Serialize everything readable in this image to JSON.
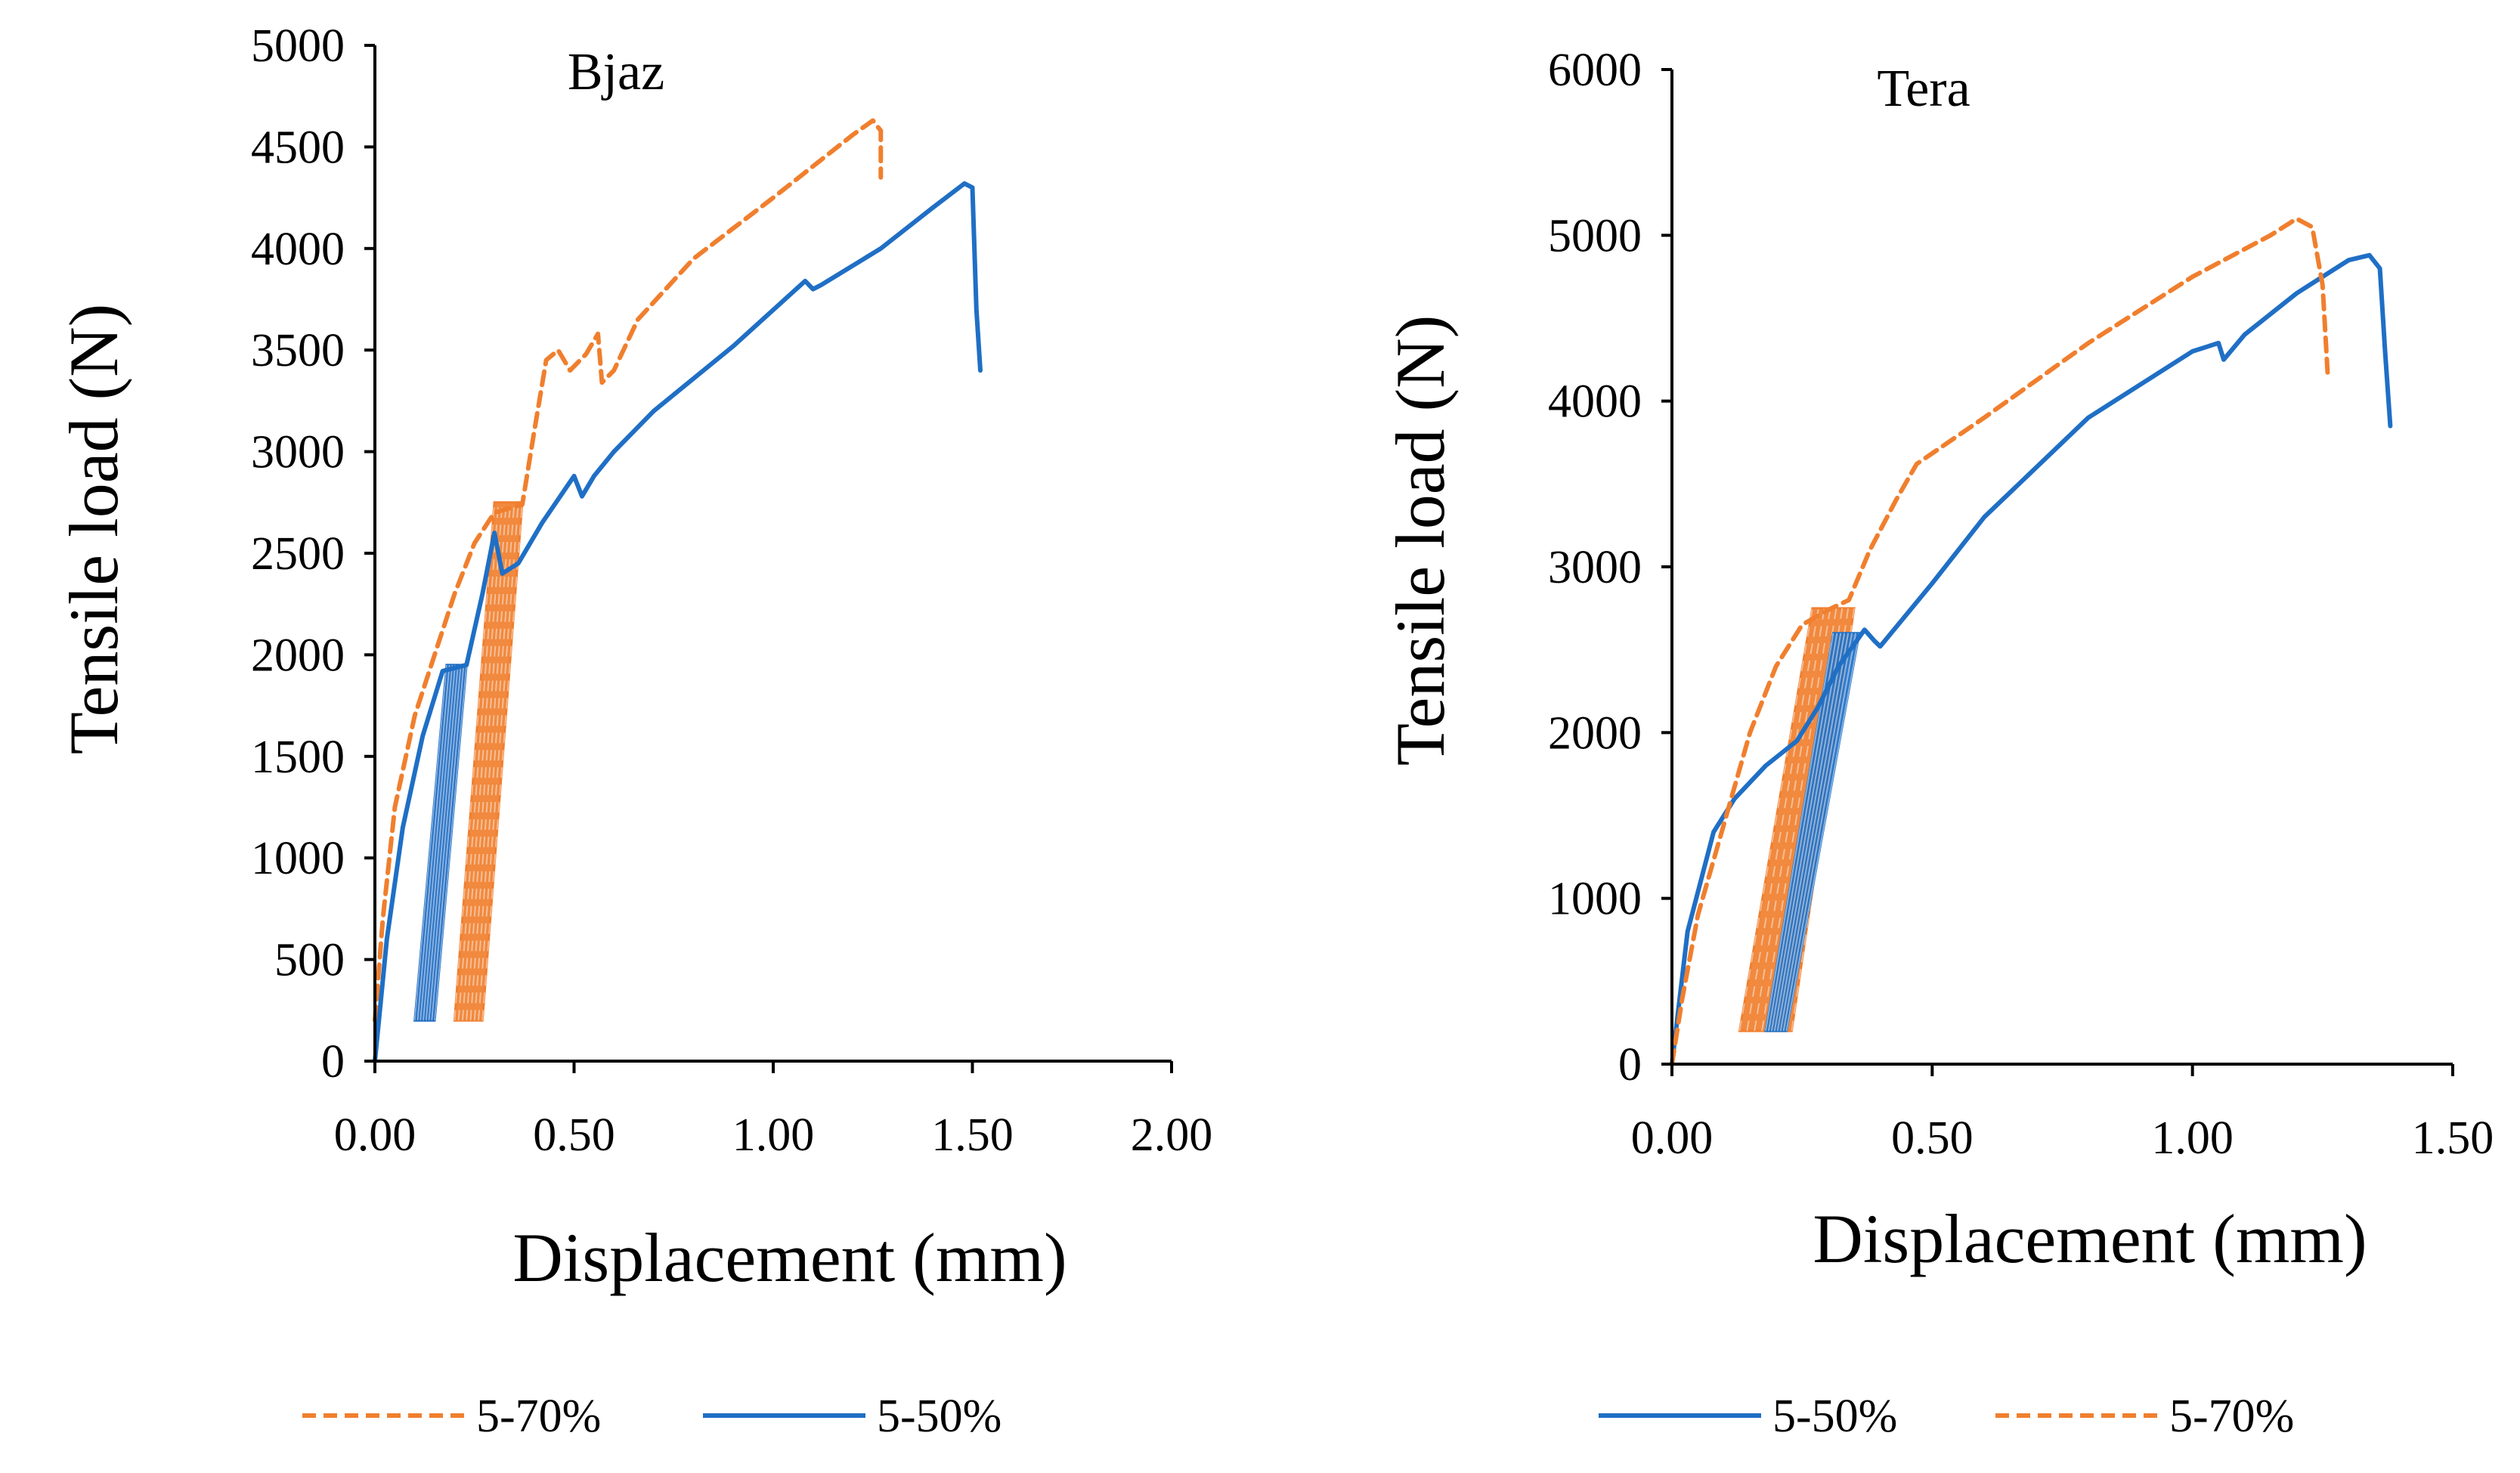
{
  "colors": {
    "orange": "#F07F2E",
    "blue": "#1F6FC5",
    "orange_fill": "#F07F2E",
    "blue_fill": "#1565C0"
  },
  "chart_data": [
    {
      "type": "line",
      "title": "Bjaz",
      "xlabel": "Displacement (mm)",
      "ylabel": "Tensile load (N)",
      "xlim": [
        0,
        2
      ],
      "ylim": [
        0,
        5000
      ],
      "xticks": [
        "0.00",
        "0.50",
        "1.00",
        "1.50",
        "2.00"
      ],
      "yticks": [
        "0",
        "500",
        "1000",
        "1500",
        "2000",
        "2500",
        "3000",
        "3500",
        "4000",
        "4500",
        "5000"
      ],
      "legend": [
        {
          "name": "5-70%",
          "style": "dashed",
          "color": "#F07F2E"
        },
        {
          "name": "5-50%",
          "style": "solid",
          "color": "#1F6FC5"
        }
      ],
      "series": [
        {
          "name": "5-70%",
          "style": "dashed",
          "color": "#F07F2E",
          "x": [
            0.0,
            0.02,
            0.05,
            0.1,
            0.15,
            0.2,
            0.25,
            0.3,
            0.37,
            0.4,
            0.43,
            0.46,
            0.49,
            0.53,
            0.56,
            0.57,
            0.6,
            0.66,
            0.8,
            1.0,
            1.2,
            1.25,
            1.27,
            1.27
          ],
          "y": [
            200,
            700,
            1250,
            1700,
            2000,
            2300,
            2550,
            2700,
            2740,
            3100,
            3450,
            3500,
            3400,
            3480,
            3580,
            3340,
            3400,
            3650,
            3950,
            4250,
            4560,
            4630,
            4580,
            4350
          ]
        },
        {
          "name": "5-50%",
          "style": "solid",
          "color": "#1F6FC5",
          "x": [
            0.0,
            0.03,
            0.07,
            0.12,
            0.17,
            0.23,
            0.27,
            0.3,
            0.32,
            0.36,
            0.42,
            0.5,
            0.52,
            0.55,
            0.6,
            0.7,
            0.9,
            1.08,
            1.1,
            1.12,
            1.27,
            1.4,
            1.48,
            1.5,
            1.51,
            1.52
          ],
          "y": [
            0,
            600,
            1150,
            1600,
            1920,
            1950,
            2300,
            2600,
            2400,
            2450,
            2650,
            2880,
            2780,
            2880,
            3000,
            3200,
            3520,
            3840,
            3800,
            3820,
            4000,
            4200,
            4320,
            4300,
            3700,
            3400
          ]
        }
      ],
      "hysteresis": [
        {
          "series": "5-50%",
          "color": "#1565C0",
          "x_bottom": [
            0.1,
            0.15
          ],
          "x_top": [
            0.18,
            0.23
          ],
          "y": [
            200,
            1950
          ]
        },
        {
          "series": "5-70%",
          "color": "#F07F2E",
          "x_bottom": [
            0.2,
            0.27
          ],
          "x_top": [
            0.3,
            0.37
          ],
          "y": [
            200,
            2750
          ]
        }
      ]
    },
    {
      "type": "line",
      "title": "Tera",
      "xlabel": "Displacement (mm)",
      "ylabel": "Tensile load (N)",
      "xlim": [
        0,
        1.5
      ],
      "ylim": [
        0,
        6000
      ],
      "xticks": [
        "0.00",
        "0.50",
        "1.00",
        "1.50"
      ],
      "yticks": [
        "0",
        "1000",
        "2000",
        "3000",
        "4000",
        "5000",
        "6000"
      ],
      "legend": [
        {
          "name": "5-50%",
          "style": "solid",
          "color": "#1F6FC5"
        },
        {
          "name": "5-70%",
          "style": "dashed",
          "color": "#F07F2E"
        }
      ],
      "series": [
        {
          "name": "5-50%",
          "style": "solid",
          "color": "#1F6FC5",
          "x": [
            0.0,
            0.03,
            0.08,
            0.12,
            0.18,
            0.24,
            0.28,
            0.32,
            0.37,
            0.39,
            0.4,
            0.5,
            0.6,
            0.8,
            1.0,
            1.05,
            1.06,
            1.1,
            1.2,
            1.3,
            1.34,
            1.36,
            1.37,
            1.38
          ],
          "y": [
            0,
            800,
            1400,
            1600,
            1800,
            1950,
            2150,
            2400,
            2620,
            2550,
            2520,
            2900,
            3300,
            3900,
            4300,
            4350,
            4250,
            4400,
            4650,
            4850,
            4880,
            4800,
            4300,
            3850
          ]
        },
        {
          "name": "5-70%",
          "style": "dashed",
          "color": "#F07F2E",
          "x": [
            0.0,
            0.02,
            0.05,
            0.1,
            0.15,
            0.2,
            0.25,
            0.3,
            0.34,
            0.38,
            0.43,
            0.47,
            0.6,
            0.8,
            1.0,
            1.15,
            1.2,
            1.23,
            1.25,
            1.26
          ],
          "y": [
            0,
            400,
            900,
            1450,
            2000,
            2400,
            2650,
            2740,
            2800,
            3100,
            3400,
            3620,
            3900,
            4350,
            4750,
            5000,
            5100,
            5050,
            4700,
            4150
          ]
        }
      ],
      "hysteresis": [
        {
          "series": "5-70%",
          "color": "#F07F2E",
          "x_bottom": [
            0.13,
            0.23
          ],
          "x_top": [
            0.27,
            0.35
          ],
          "y": [
            200,
            2750
          ]
        },
        {
          "series": "5-50%",
          "color": "#1F6FC5",
          "x_bottom": [
            0.18,
            0.22
          ],
          "x_top": [
            0.31,
            0.36
          ],
          "y": [
            200,
            2600
          ]
        }
      ]
    }
  ]
}
